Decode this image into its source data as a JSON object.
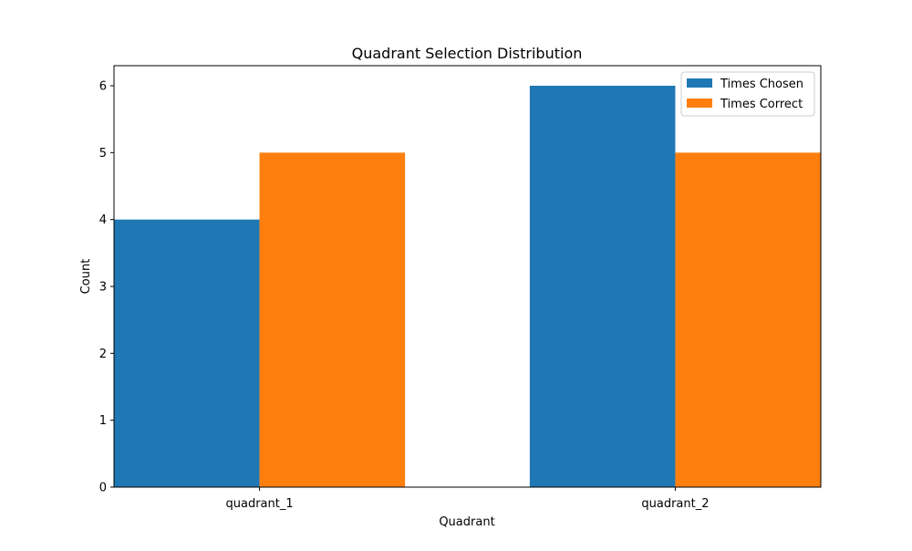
{
  "chart_data": {
    "type": "bar",
    "title": "Quadrant Selection Distribution",
    "xlabel": "Quadrant",
    "ylabel": "Count",
    "categories": [
      "quadrant_1",
      "quadrant_2"
    ],
    "series": [
      {
        "name": "Times Chosen",
        "values": [
          4,
          6
        ],
        "color": "#1f77b4"
      },
      {
        "name": "Times Correct",
        "values": [
          5,
          5
        ],
        "color": "#ff7f0e"
      }
    ],
    "ylim": [
      0,
      6.3
    ],
    "yticks": [
      0,
      1,
      2,
      3,
      4,
      5,
      6
    ],
    "grid": false,
    "legend_position": "top-right"
  }
}
